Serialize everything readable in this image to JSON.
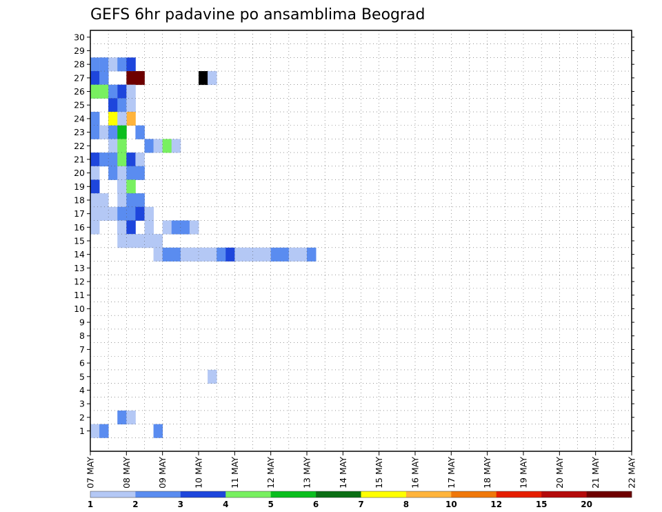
{
  "chart_data": {
    "type": "heatmap",
    "title": "GEFS 6hr padavine po ansamblima Beograd",
    "x_tick_labels": [
      "07 MAY",
      "08 MAY",
      "09 MAY",
      "10 MAY",
      "11 MAY",
      "12 MAY",
      "13 MAY",
      "14 MAY",
      "15 MAY",
      "16 MAY",
      "17 MAY",
      "18 MAY",
      "19 MAY",
      "20 MAY",
      "21 MAY",
      "22 MAY"
    ],
    "x_steps": 60,
    "steps_per_day": 4,
    "y_tick_labels": [
      "1",
      "2",
      "3",
      "4",
      "5",
      "6",
      "7",
      "8",
      "9",
      "10",
      "11",
      "12",
      "13",
      "14",
      "15",
      "16",
      "17",
      "18",
      "19",
      "20",
      "21",
      "22",
      "23",
      "24",
      "25",
      "26",
      "27",
      "28",
      "29",
      "30"
    ],
    "y_members": 31,
    "grid": true,
    "legend": {
      "placement": "bottom",
      "colors": [
        "#b4c8f5",
        "#5a8cf0",
        "#1e46dc",
        "#78f060",
        "#0abe1e",
        "#0a6e14",
        "#ffff00",
        "#ffb43c",
        "#f0780a",
        "#e61e00",
        "#b40a0a",
        "#6e0000"
      ],
      "labels": [
        "1",
        "2",
        "3",
        "4",
        "5",
        "6",
        "7",
        "8",
        "10",
        "12",
        "15",
        "20"
      ]
    },
    "cells": [
      [
        0,
        0,
        1
      ],
      [
        1,
        1,
        1
      ],
      [
        3,
        1,
        2
      ],
      [
        4,
        0,
        2
      ],
      [
        7,
        1,
        1
      ],
      [
        13,
        0,
        5
      ],
      [
        0,
        1,
        28
      ],
      [
        1,
        0,
        28
      ],
      [
        1,
        1,
        28
      ],
      [
        2,
        0,
        28
      ],
      [
        3,
        1,
        28
      ],
      [
        4,
        2,
        28
      ],
      [
        0,
        2,
        27
      ],
      [
        1,
        1,
        27
      ],
      [
        4,
        11,
        27
      ],
      [
        5,
        11,
        27
      ],
      [
        12,
        12,
        27
      ],
      [
        13,
        0,
        27
      ],
      [
        0,
        1,
        26
      ],
      [
        0,
        3,
        26
      ],
      [
        1,
        0,
        26
      ],
      [
        1,
        3,
        26
      ],
      [
        2,
        1,
        26
      ],
      [
        3,
        0,
        26
      ],
      [
        3,
        2,
        26
      ],
      [
        4,
        0,
        26
      ],
      [
        4,
        0,
        25
      ],
      [
        2,
        1,
        25
      ],
      [
        2,
        2,
        25
      ],
      [
        3,
        1,
        25
      ],
      [
        4,
        0,
        25
      ],
      [
        0,
        1,
        24
      ],
      [
        2,
        2,
        24
      ],
      [
        4,
        7,
        24
      ],
      [
        2,
        6,
        24
      ],
      [
        3,
        0,
        24
      ],
      [
        0,
        1,
        23
      ],
      [
        1,
        0,
        23
      ],
      [
        2,
        1,
        23
      ],
      [
        3,
        4,
        23
      ],
      [
        5,
        1,
        23
      ],
      [
        2,
        0,
        22
      ],
      [
        3,
        3,
        22
      ],
      [
        6,
        1,
        22
      ],
      [
        7,
        0,
        22
      ],
      [
        8,
        3,
        22
      ],
      [
        9,
        0,
        22
      ],
      [
        0,
        2,
        21
      ],
      [
        1,
        1,
        21
      ],
      [
        2,
        1,
        21
      ],
      [
        3,
        3,
        21
      ],
      [
        4,
        2,
        21
      ],
      [
        5,
        0,
        21
      ],
      [
        0,
        0,
        20
      ],
      [
        2,
        1,
        20
      ],
      [
        3,
        0,
        20
      ],
      [
        4,
        1,
        20
      ],
      [
        5,
        1,
        20
      ],
      [
        0,
        2,
        19
      ],
      [
        3,
        1,
        19
      ],
      [
        3,
        0,
        19
      ],
      [
        4,
        3,
        19
      ],
      [
        0,
        0,
        18
      ],
      [
        1,
        0,
        18
      ],
      [
        3,
        0,
        18
      ],
      [
        4,
        1,
        18
      ],
      [
        5,
        1,
        18
      ],
      [
        0,
        0,
        17
      ],
      [
        1,
        0,
        17
      ],
      [
        2,
        0,
        17
      ],
      [
        3,
        1,
        17
      ],
      [
        4,
        1,
        17
      ],
      [
        5,
        2,
        17
      ],
      [
        6,
        0,
        17
      ],
      [
        0,
        0,
        16
      ],
      [
        3,
        1,
        16
      ],
      [
        3,
        0,
        16
      ],
      [
        4,
        2,
        16
      ],
      [
        6,
        0,
        16
      ],
      [
        8,
        0,
        16
      ],
      [
        9,
        1,
        16
      ],
      [
        10,
        1,
        16
      ],
      [
        11,
        0,
        16
      ],
      [
        3,
        0,
        15
      ],
      [
        4,
        0,
        15
      ],
      [
        5,
        0,
        15
      ],
      [
        6,
        0,
        15
      ],
      [
        7,
        0,
        15
      ],
      [
        7,
        0,
        14
      ],
      [
        8,
        1,
        14
      ],
      [
        9,
        1,
        14
      ],
      [
        10,
        0,
        14
      ],
      [
        11,
        0,
        14
      ],
      [
        12,
        0,
        14
      ],
      [
        13,
        0,
        14
      ],
      [
        14,
        1,
        14
      ],
      [
        15,
        2,
        14
      ],
      [
        16,
        0,
        14
      ],
      [
        17,
        0,
        14
      ],
      [
        18,
        0,
        14
      ],
      [
        19,
        0,
        14
      ],
      [
        20,
        1,
        14
      ],
      [
        21,
        1,
        14
      ],
      [
        22,
        0,
        14
      ],
      [
        23,
        0,
        14
      ],
      [
        24,
        1,
        14
      ]
    ]
  }
}
